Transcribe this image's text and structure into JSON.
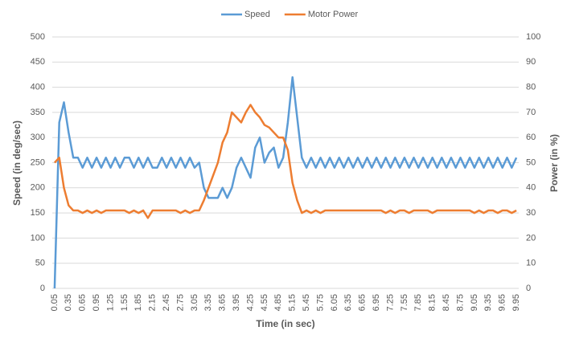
{
  "chart_data": {
    "type": "line",
    "xlabel": "Time (in sec)",
    "ylabel": "Speed (in deg/sec)",
    "y2label": "Power (in %)",
    "x": [
      0.05,
      0.15,
      0.25,
      0.35,
      0.45,
      0.55,
      0.65,
      0.75,
      0.85,
      0.95,
      1.05,
      1.15,
      1.25,
      1.35,
      1.45,
      1.55,
      1.65,
      1.75,
      1.85,
      1.95,
      2.05,
      2.15,
      2.25,
      2.35,
      2.45,
      2.55,
      2.65,
      2.75,
      2.85,
      2.95,
      3.05,
      3.15,
      3.25,
      3.35,
      3.45,
      3.55,
      3.65,
      3.75,
      3.85,
      3.95,
      4.05,
      4.15,
      4.25,
      4.35,
      4.45,
      4.55,
      4.65,
      4.75,
      4.85,
      4.95,
      5.05,
      5.15,
      5.25,
      5.35,
      5.45,
      5.55,
      5.65,
      5.75,
      5.85,
      5.95,
      6.05,
      6.15,
      6.25,
      6.35,
      6.45,
      6.55,
      6.65,
      6.75,
      6.85,
      6.95,
      7.05,
      7.15,
      7.25,
      7.35,
      7.45,
      7.55,
      7.65,
      7.75,
      7.85,
      7.95,
      8.05,
      8.15,
      8.25,
      8.35,
      8.45,
      8.55,
      8.65,
      8.75,
      8.85,
      8.95,
      9.05,
      9.15,
      9.25,
      9.35,
      9.45,
      9.55,
      9.65,
      9.75,
      9.85,
      9.95
    ],
    "xlim": [
      0,
      10
    ],
    "xticks": [
      0.05,
      0.35,
      0.65,
      0.95,
      1.25,
      1.55,
      1.85,
      2.15,
      2.45,
      2.75,
      3.05,
      3.35,
      3.65,
      3.95,
      4.25,
      4.55,
      4.85,
      5.15,
      5.45,
      5.75,
      6.05,
      6.35,
      6.65,
      6.95,
      7.25,
      7.55,
      7.85,
      8.15,
      8.45,
      8.75,
      9.05,
      9.35,
      9.65,
      9.95
    ],
    "ylim": [
      0,
      500
    ],
    "yticks": [
      0,
      50,
      100,
      150,
      200,
      250,
      300,
      350,
      400,
      450,
      500
    ],
    "y2lim": [
      0,
      100
    ],
    "y2ticks": [
      0,
      10,
      20,
      30,
      40,
      50,
      60,
      70,
      80,
      90,
      100
    ],
    "grid": true,
    "legend": "top",
    "series": [
      {
        "name": "Speed",
        "color": "#5b9bd5",
        "axis": "y",
        "values": [
          0,
          330,
          370,
          310,
          260,
          260,
          240,
          260,
          240,
          260,
          240,
          260,
          240,
          260,
          240,
          260,
          260,
          240,
          260,
          240,
          260,
          240,
          240,
          260,
          240,
          260,
          240,
          260,
          240,
          260,
          240,
          250,
          200,
          180,
          180,
          180,
          200,
          180,
          200,
          240,
          260,
          240,
          220,
          280,
          300,
          250,
          270,
          280,
          240,
          260,
          330,
          420,
          340,
          260,
          240,
          260,
          240,
          260,
          240,
          260,
          240,
          260,
          240,
          260,
          240,
          260,
          240,
          260,
          240,
          260,
          240,
          260,
          240,
          260,
          240,
          260,
          240,
          260,
          240,
          260,
          240,
          260,
          240,
          260,
          240,
          260,
          240,
          260,
          240,
          260,
          240,
          260,
          240,
          260,
          240,
          260,
          240,
          260,
          240,
          260
        ]
      },
      {
        "name": "Motor Power",
        "color": "#ed7d31",
        "axis": "y2",
        "values": [
          50,
          52,
          40,
          33,
          31,
          31,
          30,
          31,
          30,
          31,
          30,
          31,
          31,
          31,
          31,
          31,
          30,
          31,
          30,
          31,
          28,
          31,
          31,
          31,
          31,
          31,
          31,
          30,
          31,
          30,
          31,
          31,
          35,
          40,
          45,
          50,
          58,
          62,
          70,
          68,
          66,
          70,
          73,
          70,
          68,
          65,
          64,
          62,
          60,
          60,
          55,
          42,
          35,
          30,
          31,
          30,
          31,
          30,
          31,
          31,
          31,
          31,
          31,
          31,
          31,
          31,
          31,
          31,
          31,
          31,
          31,
          30,
          31,
          30,
          31,
          31,
          30,
          31,
          31,
          31,
          31,
          30,
          31,
          31,
          31,
          31,
          31,
          31,
          31,
          31,
          30,
          31,
          30,
          31,
          31,
          30,
          31,
          31,
          30,
          31
        ]
      }
    ]
  }
}
